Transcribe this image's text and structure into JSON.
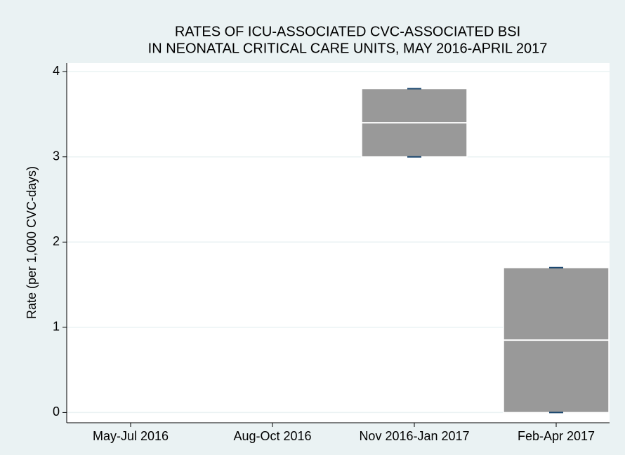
{
  "chart_data": {
    "type": "box",
    "title": [
      "RATES OF ICU-ASSOCIATED CVC-ASSOCIATED BSI",
      "IN NEONATAL CRITICAL CARE UNITS, MAY 2016-APRIL 2017"
    ],
    "y_label": "Rate (per 1,000 CVC-days)",
    "categories": [
      "May-Jul 2016",
      "Aug-Oct 2016",
      "Nov 2016-Jan 2017",
      "Feb-Apr 2017"
    ],
    "min": [
      null,
      null,
      3.0,
      0
    ],
    "q1": [
      null,
      null,
      3.0,
      0
    ],
    "median": [
      null,
      null,
      3.4,
      0.85
    ],
    "q3": [
      null,
      null,
      3.8,
      1.7
    ],
    "max": [
      null,
      null,
      3.8,
      1.7
    ],
    "color": "#999999",
    "median_color": "#ffffff",
    "whisker_color": "#1a476f",
    "ylim": [
      -0.12,
      4.1
    ],
    "yticks": [
      0,
      1,
      2,
      3,
      4
    ],
    "grid": true
  }
}
